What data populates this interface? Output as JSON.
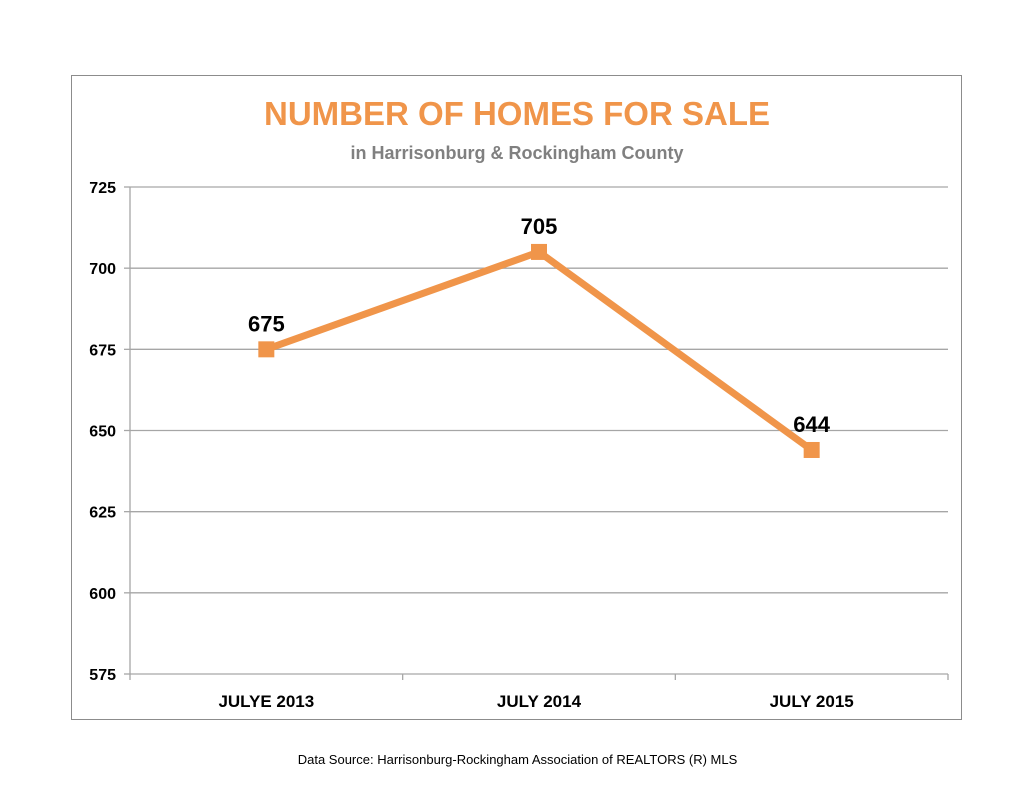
{
  "source_note": "Data Source: Harrisonburg-Rockingham Association of REALTORS (R) MLS",
  "colors": {
    "series": "#F0954A",
    "title": "#F0954A",
    "subtitle": "#808080",
    "grid": "#a6a6a6",
    "frame": "#8c8c8c"
  },
  "chart_data": {
    "type": "line",
    "title": "NUMBER OF HOMES  FOR SALE",
    "subtitle": "in Harrisonburg  & Rockingham County",
    "xlabel": "",
    "ylabel": "",
    "categories": [
      "JULYE 2013",
      "JULY 2014",
      "JULY 2015"
    ],
    "series": [
      {
        "values": [
          675,
          705,
          644
        ],
        "marker": "square"
      }
    ],
    "data_labels": [
      "675",
      "705",
      "644"
    ],
    "ylim": [
      575,
      725
    ],
    "yticks": [
      575,
      600,
      625,
      650,
      675,
      700,
      725
    ],
    "grid": true,
    "legend": "none"
  }
}
